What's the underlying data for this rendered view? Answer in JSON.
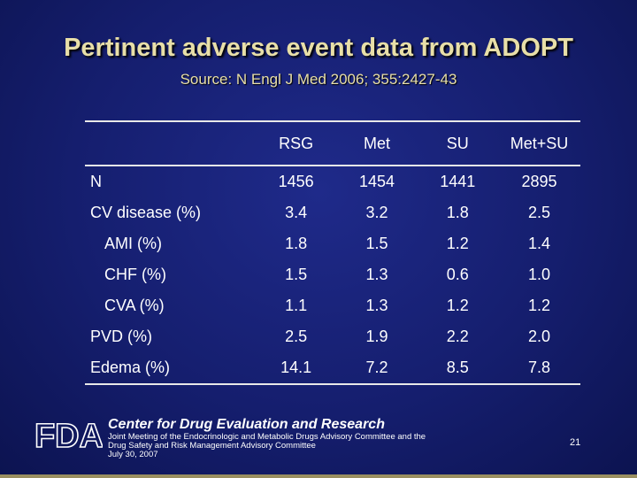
{
  "slide": {
    "title": "Pertinent adverse event data from ADOPT",
    "subtitle": "Source: N Engl J Med 2006; 355:2427-43"
  },
  "table": {
    "columns": [
      "RSG",
      "Met",
      "SU",
      "Met+SU"
    ],
    "rows": [
      {
        "label": "N",
        "values": [
          "1456",
          "1454",
          "1441",
          "2895"
        ]
      },
      {
        "label": "CV disease (%)",
        "values": [
          "3.4",
          "3.2",
          "1.8",
          "2.5"
        ]
      },
      {
        "label": "AMI (%)",
        "values": [
          "1.8",
          "1.5",
          "1.2",
          "1.4"
        ]
      },
      {
        "label": "CHF (%)",
        "values": [
          "1.5",
          "1.3",
          "0.6",
          "1.0"
        ]
      },
      {
        "label": "CVA (%)",
        "values": [
          "1.1",
          "1.3",
          "1.2",
          "1.2"
        ]
      },
      {
        "label": "PVD (%)",
        "values": [
          "2.5",
          "1.9",
          "2.2",
          "2.0"
        ]
      },
      {
        "label": "Edema (%)",
        "values": [
          "14.1",
          "7.2",
          "8.5",
          "7.8"
        ]
      }
    ]
  },
  "footer": {
    "logo_text": "FDA",
    "center_name": "Center for Drug Evaluation and Research",
    "meeting_line1": "Joint Meeting of the Endocrinologic and Metabolic Drugs Advisory Committee and the",
    "meeting_line2": "Drug Safety and Risk Management Advisory Committee",
    "meeting_date": "July 30, 2007",
    "page_number": "21"
  },
  "colors": {
    "title": "#e8dfa8",
    "background": "#151e6e",
    "text": "#ffffff"
  }
}
